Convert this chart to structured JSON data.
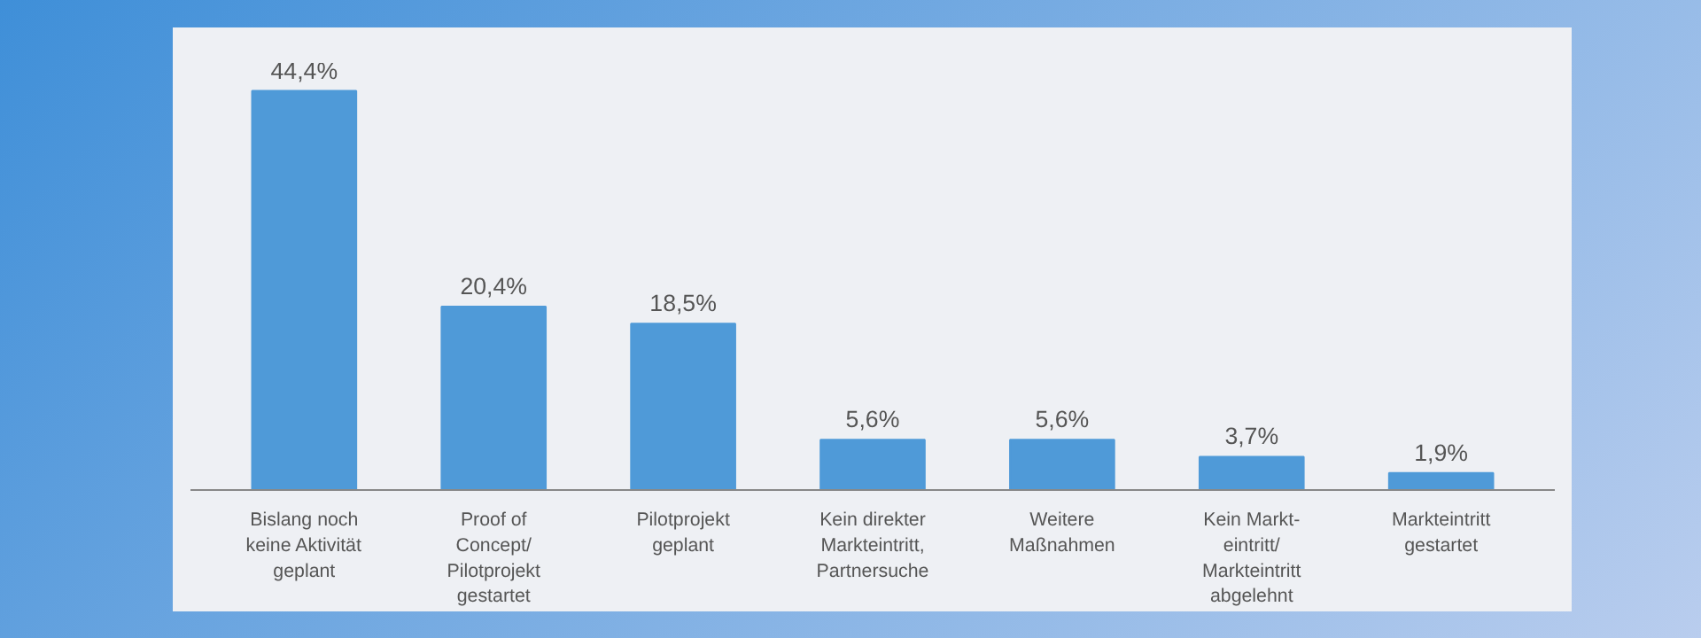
{
  "chart_data": {
    "type": "bar",
    "categories": [
      "Bislang noch\nkeine Aktivität\ngeplant",
      "Proof of\nConcept/\nPilotprojekt\ngestartet",
      "Pilotprojekt\ngeplant",
      "Kein direkter\nMarkteintritt,\nPartnersuche",
      "Weitere\nMaßnahmen",
      "Kein Markt-\neintritt/\nMarkteintritt\nabgelehnt",
      "Markteintritt\ngestartet"
    ],
    "values": [
      44.4,
      20.4,
      18.5,
      5.6,
      5.6,
      3.7,
      1.9
    ],
    "value_labels": [
      "44,4%",
      "20,4%",
      "18,5%",
      "5,6%",
      "5,6%",
      "3,7%",
      "1,9%"
    ],
    "color": "#4f9ad8",
    "grid": false
  }
}
